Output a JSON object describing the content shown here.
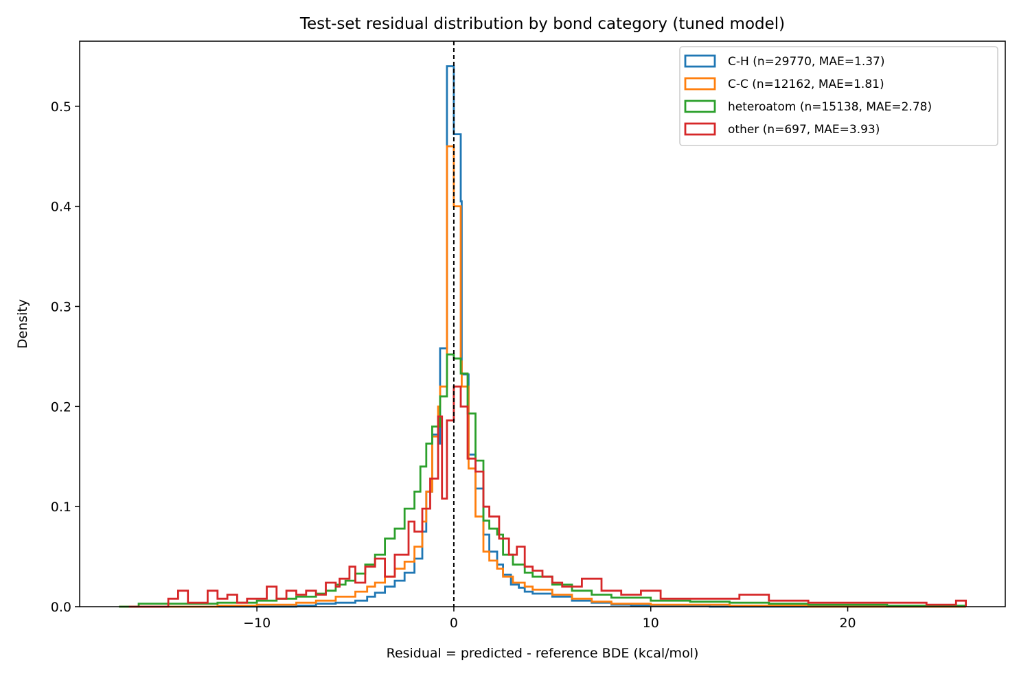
{
  "chart_data": {
    "type": "histogram-step",
    "title": "Test-set residual distribution by bond category (tuned model)",
    "xlabel": "Residual = predicted - reference BDE (kcal/mol)",
    "ylabel": "Density",
    "xlim": [
      -19,
      28
    ],
    "ylim": [
      0,
      0.565
    ],
    "xticks": [
      -10,
      0,
      10,
      20
    ],
    "xtick_labels": [
      "−10",
      "0",
      "10",
      "20"
    ],
    "yticks": [
      0.0,
      0.1,
      0.2,
      0.3,
      0.4,
      0.5
    ],
    "ytick_labels": [
      "0.0",
      "0.1",
      "0.2",
      "0.3",
      "0.4",
      "0.5"
    ],
    "grid": false,
    "legend_position": "top-right",
    "reference_line": {
      "x": 0,
      "style": "dashed",
      "color": "#000000"
    },
    "series": [
      {
        "name": "C-H (n=29770, MAE=1.37)",
        "color": "#1f77b4",
        "points": [
          [
            -17,
            0.0
          ],
          [
            -10,
            0.0
          ],
          [
            -8,
            0.001
          ],
          [
            -7,
            0.003
          ],
          [
            -6,
            0.004
          ],
          [
            -5,
            0.006
          ],
          [
            -4.4,
            0.01
          ],
          [
            -4,
            0.014
          ],
          [
            -3.5,
            0.02
          ],
          [
            -3,
            0.026
          ],
          [
            -2.5,
            0.034
          ],
          [
            -2,
            0.048
          ],
          [
            -1.6,
            0.075
          ],
          [
            -1.4,
            0.115
          ],
          [
            -1.1,
            0.172
          ],
          [
            -0.8,
            0.163
          ],
          [
            -0.7,
            0.258
          ],
          [
            -0.35,
            0.54
          ],
          [
            0,
            0.472
          ],
          [
            0.35,
            0.405
          ],
          [
            0.4,
            0.232
          ],
          [
            0.75,
            0.152
          ],
          [
            1.1,
            0.118
          ],
          [
            1.5,
            0.072
          ],
          [
            1.8,
            0.055
          ],
          [
            2.2,
            0.042
          ],
          [
            2.5,
            0.032
          ],
          [
            2.9,
            0.022
          ],
          [
            3.3,
            0.019
          ],
          [
            3.6,
            0.015
          ],
          [
            4,
            0.013
          ],
          [
            5,
            0.01
          ],
          [
            6,
            0.006
          ],
          [
            7,
            0.004
          ],
          [
            8,
            0.002
          ],
          [
            9,
            0.001
          ],
          [
            10,
            0.001
          ],
          [
            13,
            0.0
          ],
          [
            26,
            0.0
          ]
        ]
      },
      {
        "name": "C-C (n=12162, MAE=1.81)",
        "color": "#ff7f0e",
        "points": [
          [
            -17,
            0.0
          ],
          [
            -12,
            0.001
          ],
          [
            -10,
            0.002
          ],
          [
            -8,
            0.004
          ],
          [
            -7,
            0.006
          ],
          [
            -6,
            0.01
          ],
          [
            -5,
            0.015
          ],
          [
            -4.4,
            0.02
          ],
          [
            -4,
            0.024
          ],
          [
            -3.5,
            0.03
          ],
          [
            -3,
            0.038
          ],
          [
            -2.5,
            0.045
          ],
          [
            -2,
            0.06
          ],
          [
            -1.6,
            0.085
          ],
          [
            -1.4,
            0.115
          ],
          [
            -1.1,
            0.17
          ],
          [
            -0.8,
            0.2
          ],
          [
            -0.7,
            0.22
          ],
          [
            -0.35,
            0.46
          ],
          [
            0,
            0.4
          ],
          [
            0.35,
            0.245
          ],
          [
            0.4,
            0.22
          ],
          [
            0.75,
            0.138
          ],
          [
            1.1,
            0.09
          ],
          [
            1.5,
            0.055
          ],
          [
            1.8,
            0.046
          ],
          [
            2.2,
            0.038
          ],
          [
            2.5,
            0.03
          ],
          [
            3,
            0.024
          ],
          [
            3.6,
            0.02
          ],
          [
            4,
            0.017
          ],
          [
            5,
            0.012
          ],
          [
            6,
            0.008
          ],
          [
            7,
            0.005
          ],
          [
            8,
            0.003
          ],
          [
            10,
            0.002
          ],
          [
            14,
            0.001
          ],
          [
            18,
            0.0
          ],
          [
            26,
            0.0
          ]
        ]
      },
      {
        "name": "heteroatom (n=15138, MAE=2.78)",
        "color": "#2ca02c",
        "points": [
          [
            -17,
            0.0
          ],
          [
            -16,
            0.003
          ],
          [
            -14,
            0.003
          ],
          [
            -12,
            0.004
          ],
          [
            -10,
            0.006
          ],
          [
            -9,
            0.008
          ],
          [
            -8,
            0.01
          ],
          [
            -7,
            0.013
          ],
          [
            -6.5,
            0.016
          ],
          [
            -6,
            0.022
          ],
          [
            -5.5,
            0.026
          ],
          [
            -5,
            0.033
          ],
          [
            -4.5,
            0.042
          ],
          [
            -4,
            0.052
          ],
          [
            -3.5,
            0.068
          ],
          [
            -3,
            0.078
          ],
          [
            -2.5,
            0.098
          ],
          [
            -2,
            0.115
          ],
          [
            -1.7,
            0.14
          ],
          [
            -1.4,
            0.163
          ],
          [
            -1.1,
            0.18
          ],
          [
            -0.7,
            0.21
          ],
          [
            -0.35,
            0.252
          ],
          [
            0,
            0.248
          ],
          [
            0.35,
            0.233
          ],
          [
            0.7,
            0.193
          ],
          [
            1.1,
            0.146
          ],
          [
            1.5,
            0.086
          ],
          [
            1.8,
            0.078
          ],
          [
            2.2,
            0.072
          ],
          [
            2.5,
            0.052
          ],
          [
            3,
            0.042
          ],
          [
            3.6,
            0.034
          ],
          [
            4,
            0.03
          ],
          [
            5,
            0.022
          ],
          [
            6,
            0.016
          ],
          [
            7,
            0.012
          ],
          [
            8,
            0.009
          ],
          [
            10,
            0.006
          ],
          [
            12,
            0.005
          ],
          [
            14,
            0.004
          ],
          [
            16,
            0.003
          ],
          [
            18,
            0.002
          ],
          [
            22,
            0.001
          ],
          [
            26,
            0.0
          ]
        ]
      },
      {
        "name": "other (n=697, MAE=3.93)",
        "color": "#d62728",
        "points": [
          [
            -16.5,
            0.0
          ],
          [
            -14.5,
            0.008
          ],
          [
            -14,
            0.016
          ],
          [
            -13.5,
            0.004
          ],
          [
            -12.5,
            0.016
          ],
          [
            -12,
            0.008
          ],
          [
            -11.5,
            0.012
          ],
          [
            -11,
            0.004
          ],
          [
            -10.5,
            0.008
          ],
          [
            -9.5,
            0.02
          ],
          [
            -9,
            0.008
          ],
          [
            -8.5,
            0.016
          ],
          [
            -8,
            0.012
          ],
          [
            -7.5,
            0.016
          ],
          [
            -7,
            0.012
          ],
          [
            -6.5,
            0.024
          ],
          [
            -6,
            0.02
          ],
          [
            -5.8,
            0.028
          ],
          [
            -5.3,
            0.04
          ],
          [
            -5,
            0.024
          ],
          [
            -4.5,
            0.04
          ],
          [
            -4,
            0.048
          ],
          [
            -3.5,
            0.03
          ],
          [
            -3,
            0.052
          ],
          [
            -2.3,
            0.085
          ],
          [
            -2,
            0.075
          ],
          [
            -1.6,
            0.098
          ],
          [
            -1.2,
            0.128
          ],
          [
            -0.8,
            0.19
          ],
          [
            -0.6,
            0.108
          ],
          [
            -0.35,
            0.186
          ],
          [
            0,
            0.22
          ],
          [
            0.35,
            0.2
          ],
          [
            0.7,
            0.148
          ],
          [
            1.1,
            0.135
          ],
          [
            1.5,
            0.1
          ],
          [
            1.8,
            0.09
          ],
          [
            2.3,
            0.068
          ],
          [
            2.8,
            0.052
          ],
          [
            3.2,
            0.06
          ],
          [
            3.6,
            0.04
          ],
          [
            4,
            0.036
          ],
          [
            4.5,
            0.03
          ],
          [
            5,
            0.024
          ],
          [
            5.5,
            0.02
          ],
          [
            6.5,
            0.028
          ],
          [
            7.5,
            0.016
          ],
          [
            8.5,
            0.012
          ],
          [
            9.5,
            0.016
          ],
          [
            10.5,
            0.008
          ],
          [
            12.5,
            0.008
          ],
          [
            14.5,
            0.012
          ],
          [
            16,
            0.006
          ],
          [
            18,
            0.004
          ],
          [
            20,
            0.004
          ],
          [
            22,
            0.004
          ],
          [
            24,
            0.002
          ],
          [
            25.5,
            0.006
          ],
          [
            26,
            0.0
          ]
        ]
      }
    ]
  }
}
